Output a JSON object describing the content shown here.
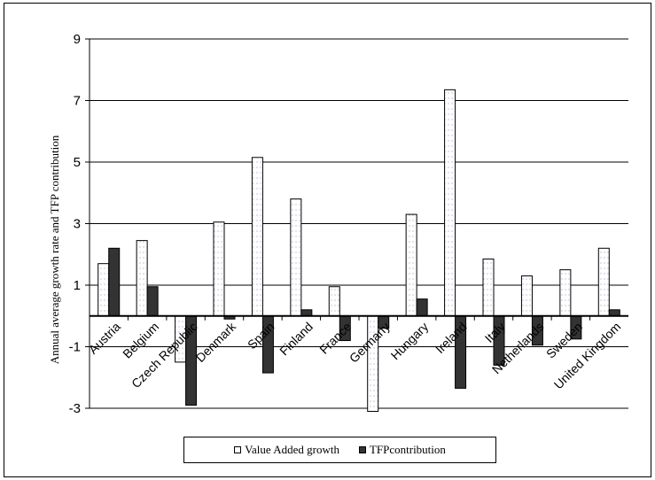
{
  "chart_data": {
    "type": "bar",
    "title": "",
    "ylabel": "Annual average growth rate and TFP contribution",
    "xlabel": "",
    "ylim": [
      -3,
      9
    ],
    "yticks": [
      9,
      7,
      5,
      3,
      1,
      -1,
      -3
    ],
    "grid": true,
    "legend_position": "bottom",
    "categories": [
      "Austria",
      "Belgium",
      "Czech Republic",
      "Denmark",
      "Spain",
      "Finland",
      "France",
      "Germany",
      "Hungary",
      "Ireland",
      "Italy",
      "Netherlands",
      "Sweden",
      "United Kingdom"
    ],
    "series": [
      {
        "name": "Value Added growth",
        "color": "#ffffff",
        "values": [
          1.7,
          2.45,
          -1.5,
          3.05,
          5.15,
          3.8,
          0.95,
          -3.1,
          3.3,
          7.35,
          1.85,
          1.3,
          1.5,
          2.2
        ]
      },
      {
        "name": "TFPcontribution",
        "color": "#333333",
        "values": [
          2.2,
          0.95,
          -2.9,
          -0.1,
          -1.85,
          0.2,
          -0.8,
          -0.4,
          0.55,
          -2.35,
          -1.6,
          -0.95,
          -0.75,
          0.2
        ]
      }
    ]
  }
}
